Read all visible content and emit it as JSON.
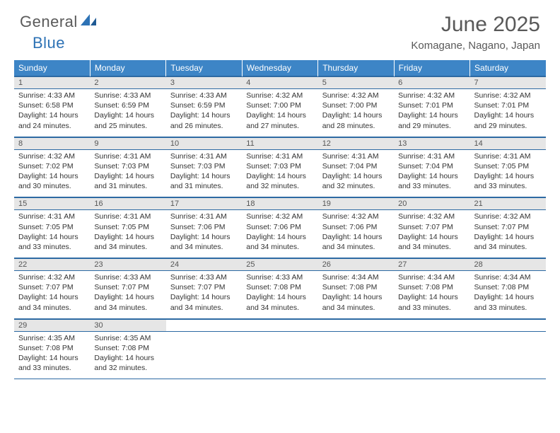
{
  "logo": {
    "text1": "General",
    "text2": "Blue"
  },
  "title": "June 2025",
  "location": "Komagane, Nagano, Japan",
  "colors": {
    "header_bg": "#3d85c6",
    "header_text": "#ffffff",
    "daynum_bg": "#e6e6e6",
    "border": "#2d6aa3",
    "title_color": "#595959",
    "body_text": "#333333"
  },
  "weekdays": [
    "Sunday",
    "Monday",
    "Tuesday",
    "Wednesday",
    "Thursday",
    "Friday",
    "Saturday"
  ],
  "cell_labels": {
    "sunrise": "Sunrise:",
    "sunset": "Sunset:",
    "daylight_prefix": "Daylight:"
  },
  "weeks": [
    [
      {
        "n": 1,
        "sr": "4:33 AM",
        "ss": "6:58 PM",
        "dl": "14 hours and 24 minutes."
      },
      {
        "n": 2,
        "sr": "4:33 AM",
        "ss": "6:59 PM",
        "dl": "14 hours and 25 minutes."
      },
      {
        "n": 3,
        "sr": "4:33 AM",
        "ss": "6:59 PM",
        "dl": "14 hours and 26 minutes."
      },
      {
        "n": 4,
        "sr": "4:32 AM",
        "ss": "7:00 PM",
        "dl": "14 hours and 27 minutes."
      },
      {
        "n": 5,
        "sr": "4:32 AM",
        "ss": "7:00 PM",
        "dl": "14 hours and 28 minutes."
      },
      {
        "n": 6,
        "sr": "4:32 AM",
        "ss": "7:01 PM",
        "dl": "14 hours and 29 minutes."
      },
      {
        "n": 7,
        "sr": "4:32 AM",
        "ss": "7:01 PM",
        "dl": "14 hours and 29 minutes."
      }
    ],
    [
      {
        "n": 8,
        "sr": "4:32 AM",
        "ss": "7:02 PM",
        "dl": "14 hours and 30 minutes."
      },
      {
        "n": 9,
        "sr": "4:31 AM",
        "ss": "7:03 PM",
        "dl": "14 hours and 31 minutes."
      },
      {
        "n": 10,
        "sr": "4:31 AM",
        "ss": "7:03 PM",
        "dl": "14 hours and 31 minutes."
      },
      {
        "n": 11,
        "sr": "4:31 AM",
        "ss": "7:03 PM",
        "dl": "14 hours and 32 minutes."
      },
      {
        "n": 12,
        "sr": "4:31 AM",
        "ss": "7:04 PM",
        "dl": "14 hours and 32 minutes."
      },
      {
        "n": 13,
        "sr": "4:31 AM",
        "ss": "7:04 PM",
        "dl": "14 hours and 33 minutes."
      },
      {
        "n": 14,
        "sr": "4:31 AM",
        "ss": "7:05 PM",
        "dl": "14 hours and 33 minutes."
      }
    ],
    [
      {
        "n": 15,
        "sr": "4:31 AM",
        "ss": "7:05 PM",
        "dl": "14 hours and 33 minutes."
      },
      {
        "n": 16,
        "sr": "4:31 AM",
        "ss": "7:05 PM",
        "dl": "14 hours and 34 minutes."
      },
      {
        "n": 17,
        "sr": "4:31 AM",
        "ss": "7:06 PM",
        "dl": "14 hours and 34 minutes."
      },
      {
        "n": 18,
        "sr": "4:32 AM",
        "ss": "7:06 PM",
        "dl": "14 hours and 34 minutes."
      },
      {
        "n": 19,
        "sr": "4:32 AM",
        "ss": "7:06 PM",
        "dl": "14 hours and 34 minutes."
      },
      {
        "n": 20,
        "sr": "4:32 AM",
        "ss": "7:07 PM",
        "dl": "14 hours and 34 minutes."
      },
      {
        "n": 21,
        "sr": "4:32 AM",
        "ss": "7:07 PM",
        "dl": "14 hours and 34 minutes."
      }
    ],
    [
      {
        "n": 22,
        "sr": "4:32 AM",
        "ss": "7:07 PM",
        "dl": "14 hours and 34 minutes."
      },
      {
        "n": 23,
        "sr": "4:33 AM",
        "ss": "7:07 PM",
        "dl": "14 hours and 34 minutes."
      },
      {
        "n": 24,
        "sr": "4:33 AM",
        "ss": "7:07 PM",
        "dl": "14 hours and 34 minutes."
      },
      {
        "n": 25,
        "sr": "4:33 AM",
        "ss": "7:08 PM",
        "dl": "14 hours and 34 minutes."
      },
      {
        "n": 26,
        "sr": "4:34 AM",
        "ss": "7:08 PM",
        "dl": "14 hours and 34 minutes."
      },
      {
        "n": 27,
        "sr": "4:34 AM",
        "ss": "7:08 PM",
        "dl": "14 hours and 33 minutes."
      },
      {
        "n": 28,
        "sr": "4:34 AM",
        "ss": "7:08 PM",
        "dl": "14 hours and 33 minutes."
      }
    ],
    [
      {
        "n": 29,
        "sr": "4:35 AM",
        "ss": "7:08 PM",
        "dl": "14 hours and 33 minutes."
      },
      {
        "n": 30,
        "sr": "4:35 AM",
        "ss": "7:08 PM",
        "dl": "14 hours and 32 minutes."
      },
      null,
      null,
      null,
      null,
      null
    ]
  ]
}
